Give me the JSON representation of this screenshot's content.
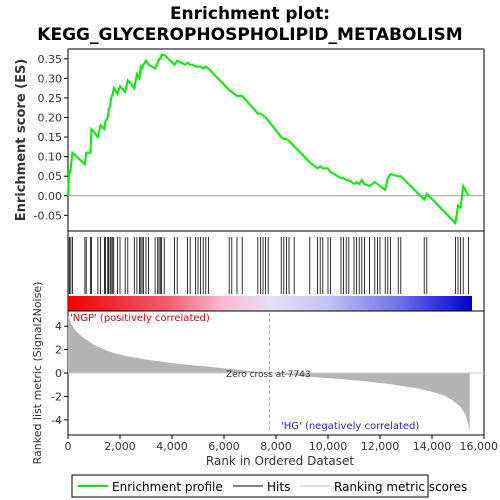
{
  "chart_data": {
    "type": "line",
    "title": "Enrichment plot:\nKEGG_GLYCEROPHOSPHOLIPID_METABOLISM",
    "title_lines": [
      "Enrichment plot:",
      "KEGG_GLYCEROPHOSPHOLIPID_METABOLISM"
    ],
    "xlabel": "Rank in Ordered Dataset",
    "es_panel": {
      "ylabel": "Enrichment score (ES)",
      "xlim": [
        0,
        16000
      ],
      "ylim": [
        -0.09,
        0.375
      ],
      "yticks": [
        -0.05,
        0.0,
        0.05,
        0.1,
        0.15,
        0.2,
        0.25,
        0.3,
        0.35
      ],
      "ytick_labels": [
        "-0.05",
        "0.00",
        "0.05",
        "0.10",
        "0.15",
        "0.20",
        "0.25",
        "0.30",
        "0.35"
      ],
      "series": [
        {
          "name": "Enrichment profile",
          "color": "#00ee00",
          "x": [
            0,
            40,
            90,
            170,
            650,
            700,
            860,
            900,
            1150,
            1250,
            1400,
            1440,
            1530,
            1560,
            1620,
            1660,
            1720,
            1760,
            1900,
            2000,
            2200,
            2300,
            2550,
            2650,
            2750,
            2800,
            2850,
            2900,
            3000,
            3100,
            3350,
            3450,
            3500,
            3550,
            3600,
            3700,
            4100,
            4200,
            4500,
            4600,
            4700,
            4800,
            4900,
            5000,
            5100,
            5200,
            5300,
            5400,
            6200,
            6300,
            6500,
            6600,
            6700,
            7300,
            7400,
            7500,
            7600,
            8200,
            8300,
            8400,
            8500,
            9300,
            9600,
            9700,
            9800,
            10000,
            10100,
            10500,
            10600,
            10700,
            10800,
            11000,
            11100,
            11200,
            11300,
            11400,
            11600,
            11800,
            11900,
            12000,
            12200,
            12300,
            12400,
            12700,
            12800,
            13700,
            13800,
            14900,
            15000,
            15100,
            15200,
            15400
          ],
          "y": [
            0.0,
            0.06,
            0.06,
            0.11,
            0.08,
            0.11,
            0.11,
            0.17,
            0.15,
            0.18,
            0.17,
            0.19,
            0.2,
            0.22,
            0.23,
            0.25,
            0.26,
            0.275,
            0.26,
            0.28,
            0.265,
            0.295,
            0.275,
            0.31,
            0.3,
            0.33,
            0.325,
            0.335,
            0.345,
            0.335,
            0.325,
            0.34,
            0.35,
            0.35,
            0.36,
            0.36,
            0.335,
            0.345,
            0.335,
            0.34,
            0.335,
            0.335,
            0.33,
            0.33,
            0.33,
            0.325,
            0.33,
            0.325,
            0.27,
            0.265,
            0.255,
            0.255,
            0.255,
            0.21,
            0.21,
            0.205,
            0.2,
            0.15,
            0.145,
            0.145,
            0.14,
            0.085,
            0.07,
            0.075,
            0.07,
            0.07,
            0.06,
            0.045,
            0.045,
            0.04,
            0.04,
            0.03,
            0.035,
            0.03,
            0.04,
            0.03,
            0.025,
            0.035,
            0.03,
            0.025,
            0.015,
            0.045,
            0.055,
            0.05,
            0.05,
            -0.01,
            0.005,
            -0.07,
            -0.025,
            -0.03,
            0.025,
            0.0
          ]
        }
      ]
    },
    "hits_panel": {
      "legend_name": "Hits",
      "positions": [
        10,
        60,
        110,
        170,
        650,
        700,
        860,
        900,
        1150,
        1250,
        1400,
        1440,
        1530,
        1560,
        1620,
        1660,
        1720,
        1760,
        1900,
        2000,
        2200,
        2300,
        2550,
        2650,
        2750,
        2800,
        2850,
        2900,
        3000,
        3100,
        3350,
        3450,
        3500,
        3550,
        3600,
        3700,
        4100,
        4200,
        4600,
        4700,
        4900,
        5000,
        5100,
        5200,
        5300,
        5400,
        6200,
        6300,
        6500,
        6700,
        7300,
        7400,
        7500,
        7600,
        7700,
        8200,
        8300,
        8400,
        8500,
        8700,
        9300,
        9600,
        9700,
        9800,
        10000,
        10100,
        10500,
        10600,
        10700,
        10800,
        11000,
        11100,
        11200,
        11300,
        11400,
        11600,
        11800,
        11900,
        12000,
        12200,
        12300,
        12400,
        12700,
        12800,
        13700,
        13800,
        14900,
        15000,
        15100,
        15200,
        15400
      ]
    },
    "rank_metric_panel": {
      "ylabel": "Ranked list metric (Signal2Noise)",
      "legend_name": "Ranking metric scores",
      "ylim": [
        -5.3,
        5.3
      ],
      "yticks": [
        -4,
        -2,
        0,
        2,
        4
      ],
      "ytick_labels": [
        "-4",
        "-2",
        "0",
        "2",
        "4"
      ],
      "x": [
        0,
        150,
        300,
        600,
        1000,
        1500,
        2000,
        3000,
        4000,
        5000,
        6000,
        7000,
        7743,
        8500,
        9500,
        10500,
        11500,
        12500,
        13500,
        14000,
        14500,
        14800,
        15100,
        15300,
        15450
      ],
      "values": [
        4.9,
        4.1,
        3.6,
        3.0,
        2.4,
        1.9,
        1.55,
        1.15,
        0.85,
        0.62,
        0.4,
        0.17,
        0.0,
        -0.18,
        -0.35,
        -0.52,
        -0.72,
        -0.98,
        -1.35,
        -1.6,
        -1.95,
        -2.35,
        -2.9,
        -3.6,
        -4.9
      ]
    },
    "xticks": [
      0,
      2000,
      4000,
      6000,
      8000,
      10000,
      12000,
      14000,
      16000
    ],
    "xtick_labels": [
      "0",
      "2,000",
      "4,000",
      "6,000",
      "8,000",
      "10,000",
      "12,000",
      "14,000",
      "16,000"
    ],
    "zero_cross_rank": 7743,
    "zero_cross_label": "Zero cross at 7743",
    "pos_label": "'NGP' (positively correlated)",
    "neg_label": "'HG' (negatively correlated)",
    "legend": [
      {
        "name": "Enrichment profile",
        "color": "#00ee00"
      },
      {
        "name": "Hits",
        "color": "#000000"
      },
      {
        "name": "Ranking metric scores",
        "color": "#c0c0c0"
      }
    ],
    "colors": {
      "pos_label": "#e00000",
      "neg_label": "#2222cc",
      "metric_fill": "#b4b4b4",
      "zero_cross_line": "#a0a0a0"
    }
  }
}
